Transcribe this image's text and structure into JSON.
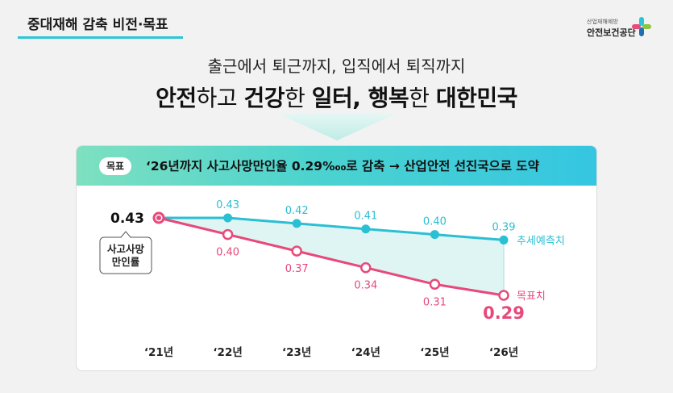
{
  "header": {
    "title": "중대재해 감축 비전·목표"
  },
  "logo": {
    "small": "산업재해예방",
    "main": "안전보건공단",
    "colors": [
      "#2bc6d6",
      "#8cc63f",
      "#1f6fb5",
      "#e84d7a"
    ]
  },
  "vision": {
    "subtitle": "출근에서 퇴근까지, 입직에서 퇴직까지",
    "headline_parts": [
      {
        "text": "안전",
        "bold": true
      },
      {
        "text": "하고 ",
        "bold": false
      },
      {
        "text": "건강",
        "bold": true
      },
      {
        "text": "한 ",
        "bold": false
      },
      {
        "text": "일터, 행복",
        "bold": true
      },
      {
        "text": "한 ",
        "bold": false
      },
      {
        "text": "대한민국",
        "bold": true
      }
    ]
  },
  "goal": {
    "tag": "목표",
    "text": "‘26년까지 사고사망만인율 0.29‱로 감축 → 산업안전 선진국으로 도약"
  },
  "chart_data": {
    "type": "line",
    "categories": [
      "‘21년",
      "‘22년",
      "‘23년",
      "‘24년",
      "‘25년",
      "‘26년"
    ],
    "series": [
      {
        "name": "추세예측치",
        "values": [
          0.43,
          0.43,
          0.42,
          0.41,
          0.4,
          0.39
        ],
        "color": "#2bbfd3"
      },
      {
        "name": "목표치",
        "values": [
          0.43,
          0.4,
          0.37,
          0.34,
          0.31,
          0.29
        ],
        "color": "#e8487a"
      }
    ],
    "start_label": "0.43",
    "ylabel": "사고사망\n만인률",
    "highlight_label": "0.29"
  }
}
